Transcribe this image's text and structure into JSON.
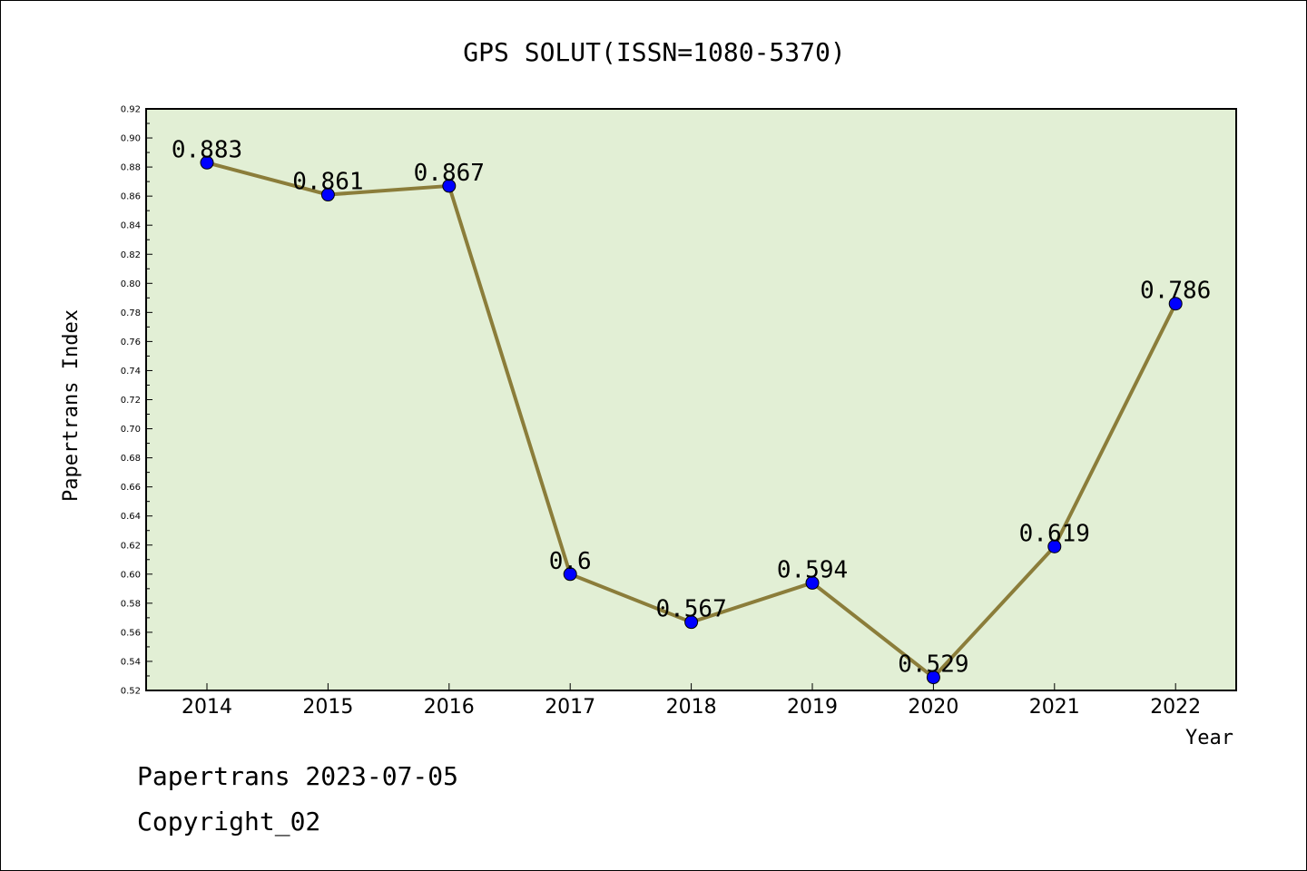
{
  "chart_data": {
    "type": "line",
    "title": "GPS SOLUT(ISSN=1080-5370)",
    "xlabel": "Year",
    "ylabel": "Papertrans Index",
    "categories": [
      "2014",
      "2015",
      "2016",
      "2017",
      "2018",
      "2019",
      "2020",
      "2021",
      "2022"
    ],
    "values": [
      0.883,
      0.861,
      0.867,
      0.6,
      0.567,
      0.594,
      0.529,
      0.619,
      0.786
    ],
    "data_labels": [
      "0.883",
      "0.861",
      "0.867",
      "0.6",
      "0.567",
      "0.594",
      "0.529",
      "0.619",
      "0.786"
    ],
    "ylim": [
      0.52,
      0.92
    ],
    "yticks": [
      "0.52",
      "0.54",
      "0.56",
      "0.58",
      "0.60",
      "0.62",
      "0.64",
      "0.66",
      "0.68",
      "0.70",
      "0.72",
      "0.74",
      "0.76",
      "0.78",
      "0.80",
      "0.82",
      "0.84",
      "0.86",
      "0.88",
      "0.90",
      "0.92"
    ],
    "grid": false,
    "colors": {
      "plot_background": "#e2efd5",
      "line": "#8b7d3a",
      "marker": "#0000ff"
    }
  },
  "footer": {
    "line1": "Papertrans 2023-07-05",
    "line2": "Copyright_02"
  }
}
